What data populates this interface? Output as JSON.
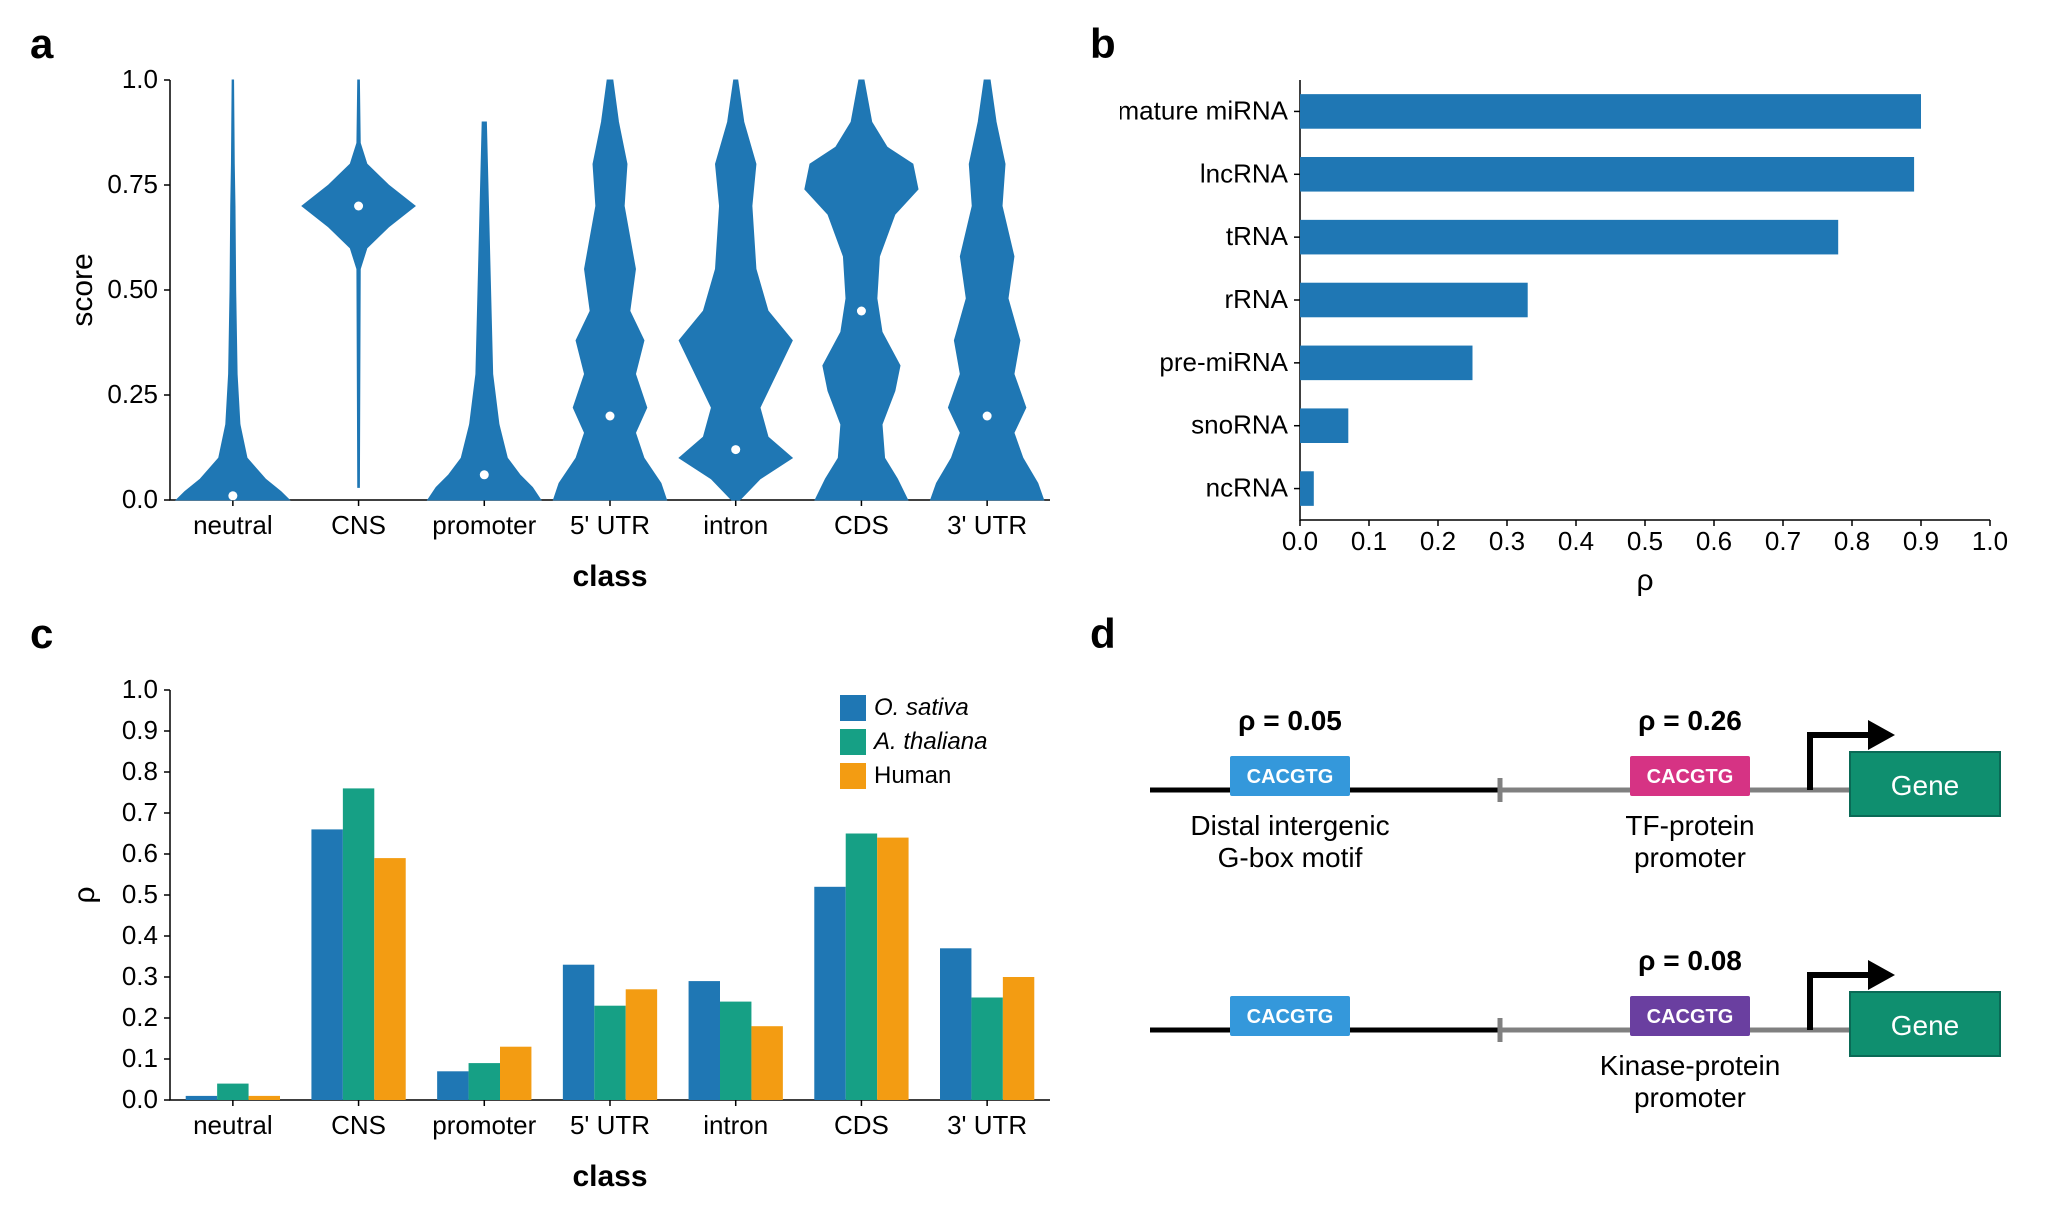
{
  "labels": {
    "a": "a",
    "b": "b",
    "c": "c",
    "d": "d"
  },
  "panel_a": {
    "type": "violin",
    "ylabel": "score",
    "xlabel": "class",
    "ylim": [
      0,
      1.0
    ],
    "yticks": [
      0.0,
      0.25,
      0.5,
      0.75,
      1.0
    ],
    "ytick_labels": [
      "0.0",
      "0.25",
      "0.50",
      "0.75",
      "1.0"
    ],
    "categories": [
      "neutral",
      "CNS",
      "promoter",
      "5' UTR",
      "intron",
      "CDS",
      "3' UTR"
    ],
    "medians": [
      0.01,
      0.7,
      0.06,
      0.2,
      0.12,
      0.45,
      0.2
    ],
    "fill_color": "#1f77b4",
    "median_color": "#ffffff",
    "axis_color": "#000000",
    "background_color": "#ffffff",
    "axis_fontsize": 26,
    "label_fontsize": 30,
    "violin_shapes": [
      [
        [
          0,
          0.4
        ],
        [
          0.02,
          0.34
        ],
        [
          0.05,
          0.23
        ],
        [
          0.1,
          0.1
        ],
        [
          0.18,
          0.05
        ],
        [
          0.3,
          0.03
        ],
        [
          0.5,
          0.02
        ],
        [
          0.7,
          0.015
        ],
        [
          0.8,
          0.01
        ],
        [
          1.0,
          0.005
        ]
      ],
      [
        [
          0.03,
          0.005
        ],
        [
          0.55,
          0.01
        ],
        [
          0.6,
          0.05
        ],
        [
          0.65,
          0.18
        ],
        [
          0.7,
          0.34
        ],
        [
          0.75,
          0.18
        ],
        [
          0.8,
          0.05
        ],
        [
          0.85,
          0.01
        ],
        [
          1.0,
          0.005
        ]
      ],
      [
        [
          0,
          0.27
        ],
        [
          0.03,
          0.23
        ],
        [
          0.06,
          0.17
        ],
        [
          0.1,
          0.11
        ],
        [
          0.18,
          0.07
        ],
        [
          0.3,
          0.04
        ],
        [
          0.5,
          0.03
        ],
        [
          0.7,
          0.02
        ],
        [
          0.9,
          0.01
        ]
      ],
      [
        [
          0,
          0.2
        ],
        [
          0.04,
          0.18
        ],
        [
          0.1,
          0.12
        ],
        [
          0.16,
          0.09
        ],
        [
          0.22,
          0.13
        ],
        [
          0.3,
          0.09
        ],
        [
          0.38,
          0.12
        ],
        [
          0.45,
          0.07
        ],
        [
          0.55,
          0.09
        ],
        [
          0.7,
          0.05
        ],
        [
          0.8,
          0.06
        ],
        [
          0.9,
          0.03
        ],
        [
          1.0,
          0.01
        ]
      ],
      [
        [
          0,
          0.01
        ],
        [
          0.05,
          0.06
        ],
        [
          0.1,
          0.14
        ],
        [
          0.15,
          0.08
        ],
        [
          0.22,
          0.06
        ],
        [
          0.3,
          0.1
        ],
        [
          0.38,
          0.14
        ],
        [
          0.45,
          0.08
        ],
        [
          0.55,
          0.05
        ],
        [
          0.7,
          0.04
        ],
        [
          0.8,
          0.05
        ],
        [
          0.9,
          0.02
        ],
        [
          1.0,
          0.005
        ]
      ],
      [
        [
          0,
          0.18
        ],
        [
          0.05,
          0.14
        ],
        [
          0.1,
          0.09
        ],
        [
          0.18,
          0.08
        ],
        [
          0.26,
          0.13
        ],
        [
          0.32,
          0.15
        ],
        [
          0.4,
          0.08
        ],
        [
          0.48,
          0.06
        ],
        [
          0.58,
          0.07
        ],
        [
          0.68,
          0.13
        ],
        [
          0.74,
          0.22
        ],
        [
          0.8,
          0.2
        ],
        [
          0.84,
          0.1
        ],
        [
          0.9,
          0.04
        ],
        [
          1.0,
          0.01
        ]
      ],
      [
        [
          0,
          0.19
        ],
        [
          0.04,
          0.17
        ],
        [
          0.1,
          0.12
        ],
        [
          0.16,
          0.09
        ],
        [
          0.22,
          0.13
        ],
        [
          0.3,
          0.09
        ],
        [
          0.38,
          0.11
        ],
        [
          0.48,
          0.07
        ],
        [
          0.58,
          0.09
        ],
        [
          0.7,
          0.05
        ],
        [
          0.8,
          0.06
        ],
        [
          0.9,
          0.03
        ],
        [
          1.0,
          0.01
        ]
      ]
    ]
  },
  "panel_b": {
    "type": "horizontal-bar",
    "xlabel": "ρ",
    "xlim": [
      0,
      1.0
    ],
    "xticks": [
      0.0,
      0.1,
      0.2,
      0.3,
      0.4,
      0.5,
      0.6,
      0.7,
      0.8,
      0.9,
      1.0
    ],
    "categories": [
      "mature miRNA",
      "lncRNA",
      "tRNA",
      "rRNA",
      "pre-miRNA",
      "snoRNA",
      "ncRNA"
    ],
    "values": [
      0.9,
      0.89,
      0.78,
      0.33,
      0.25,
      0.07,
      0.02
    ],
    "bar_color": "#1f77b4",
    "axis_fontsize": 26,
    "label_fontsize": 30,
    "bar_height": 0.55
  },
  "panel_c": {
    "type": "grouped-bar",
    "ylabel": "ρ",
    "xlabel": "class",
    "ylim": [
      0,
      1.0
    ],
    "yticks": [
      0.0,
      0.1,
      0.2,
      0.3,
      0.4,
      0.5,
      0.6,
      0.7,
      0.8,
      0.9,
      1.0
    ],
    "categories": [
      "neutral",
      "CNS",
      "promoter",
      "5' UTR",
      "intron",
      "CDS",
      "3' UTR"
    ],
    "series": [
      {
        "name": "O. sativa",
        "color": "#1f77b4",
        "italic": true,
        "values": [
          0.01,
          0.66,
          0.07,
          0.33,
          0.29,
          0.52,
          0.37
        ]
      },
      {
        "name": "A. thaliana",
        "color": "#16a085",
        "italic": true,
        "values": [
          0.04,
          0.76,
          0.09,
          0.23,
          0.24,
          0.65,
          0.25
        ]
      },
      {
        "name": "Human",
        "color": "#f39c12",
        "italic": false,
        "values": [
          0.01,
          0.59,
          0.13,
          0.27,
          0.18,
          0.64,
          0.3
        ]
      }
    ],
    "axis_fontsize": 26,
    "label_fontsize": 30,
    "bar_width": 0.25
  },
  "panel_d": {
    "type": "infographic",
    "rows": [
      {
        "rho_left": "ρ = 0.05",
        "rho_right": "ρ = 0.26",
        "motif_text": "CACGTG",
        "left_box_color": "#3498db",
        "right_box_color": "#d63384",
        "gene_label": "Gene",
        "gene_color": "#0f8f6f",
        "caption_left": "Distal intergenic\nG-box motif",
        "caption_right": "TF-protein\npromoter"
      },
      {
        "rho_left": "",
        "rho_right": "ρ = 0.08",
        "motif_text": "CACGTG",
        "left_box_color": "#3498db",
        "right_box_color": "#6a3fa0",
        "gene_label": "Gene",
        "gene_color": "#0f8f6f",
        "caption_left": "",
        "caption_right": "Kinase-protein\npromoter"
      }
    ],
    "line_black": "#000000",
    "line_grey": "#808080",
    "motif_text_color": "#ffffff",
    "fontsize_rho": 28,
    "fontsize_motif": 20,
    "fontsize_caption": 28,
    "fontsize_gene": 28
  }
}
